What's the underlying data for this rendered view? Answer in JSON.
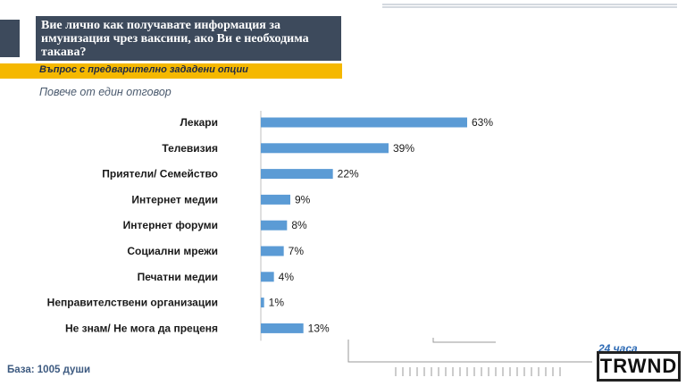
{
  "header": {
    "title": "Вие лично как получавате информация за имунизация чрез ваксини, ако Ви е необходима такава?",
    "question_type": "Въпрос с предварително зададени опции",
    "subtitle": "Повече от един отговор"
  },
  "footer": {
    "base": "База: 1005 души"
  },
  "logo": {
    "brand_top": "24 часа",
    "brand_word": "TRWND"
  },
  "colors": {
    "bar": "#5b9bd5",
    "title_bg": "#3d4a5c",
    "accent": "#f5b800"
  },
  "chart_data": {
    "type": "bar",
    "orientation": "horizontal",
    "categories": [
      "Лекари",
      "Телевизия",
      "Приятели/ Семейство",
      "Интернет медии",
      "Интернет форуми",
      "Социални мрежи",
      "Печатни медии",
      "Неправителствени организации",
      "Не знам/ Не мога да преценя"
    ],
    "values": [
      63,
      39,
      22,
      9,
      8,
      7,
      4,
      1,
      13
    ],
    "value_labels": [
      "63%",
      "39%",
      "22%",
      "9%",
      "8%",
      "7%",
      "4%",
      "1%",
      "13%"
    ],
    "xlim": [
      0,
      100
    ],
    "grid": false,
    "legend": "none"
  }
}
